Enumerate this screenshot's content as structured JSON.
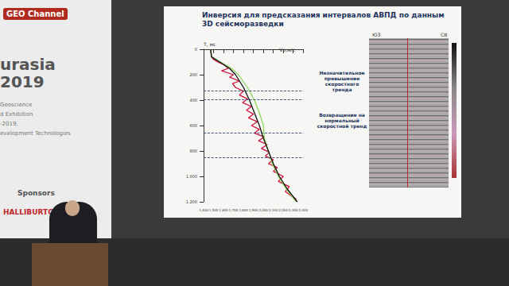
{
  "scene": {
    "banner": {
      "logo": "GEO Channel",
      "event": [
        "urasia",
        "2019"
      ],
      "lines": [
        "Geoscience",
        "d Exhibition",
        "-2019,",
        "evelopment Technologies"
      ],
      "sponsors": "Sponsors",
      "sponsor": "HALLIBURTON"
    },
    "slide": {
      "title": "Инверсия для предсказания интервалов АВПД по данным 3D сейсморазведки",
      "section_labels": [
        "ЮЗ",
        "СВ"
      ]
    }
  },
  "chart_data": {
    "type": "line",
    "x_label": "Vp,м/с",
    "y_label": "T, мс",
    "xlim": [
      1400,
      2400
    ],
    "xticks": [
      1400,
      1500,
      1600,
      1700,
      1800,
      1900,
      2000,
      2100,
      2200,
      2300,
      2400
    ],
    "ylim": [
      0,
      1200
    ],
    "yticks": [
      0,
      200,
      400,
      600,
      800,
      1000,
      1200
    ],
    "grid": false,
    "series": [
      {
        "color": "#d0103a",
        "line_style": "solid",
        "x": [
          1470,
          1480,
          1500,
          1540,
          1600,
          1650,
          1580,
          1700,
          1660,
          1760,
          1690,
          1720,
          1800,
          1760,
          1840,
          1790,
          1880,
          1830,
          1900,
          1850,
          1940,
          1880,
          1960,
          1910,
          2010,
          1950,
          2040,
          1980,
          2060,
          2020,
          2100,
          2050,
          2140,
          2100,
          2200,
          2150,
          2260,
          2220,
          2330
        ],
        "values": [
          0,
          60,
          80,
          100,
          120,
          150,
          170,
          200,
          220,
          250,
          270,
          300,
          330,
          360,
          390,
          420,
          450,
          480,
          510,
          540,
          570,
          600,
          630,
          660,
          690,
          720,
          750,
          780,
          810,
          840,
          870,
          900,
          930,
          960,
          1000,
          1040,
          1080,
          1120,
          1180
        ]
      },
      {
        "color": "#8ed85a",
        "line_style": "solid",
        "x": [
          1470,
          1480,
          1570,
          1680,
          1750,
          1840,
          1910,
          1960,
          2000,
          2010,
          2050,
          2090,
          2150,
          2230,
          2330
        ],
        "values": [
          0,
          60,
          100,
          150,
          200,
          300,
          400,
          500,
          600,
          700,
          800,
          900,
          1000,
          1100,
          1200
        ]
      },
      {
        "color": "#111111",
        "line_style": "solid",
        "x": [
          1470,
          1480,
          1560,
          1660,
          1720,
          1800,
          1860,
          1910,
          1960,
          2000,
          2050,
          2100,
          2160,
          2240,
          2340
        ],
        "values": [
          0,
          60,
          100,
          150,
          200,
          300,
          400,
          500,
          600,
          700,
          800,
          900,
          1000,
          1100,
          1200
        ]
      }
    ],
    "hlines": [
      326,
      396,
      658,
      850
    ],
    "annotations": [
      {
        "text": "Незначительное превышение скоростного тренда",
        "y": 326
      },
      {
        "text": "Возвращение на нормальный скоростной тренд",
        "y": 658
      }
    ]
  }
}
